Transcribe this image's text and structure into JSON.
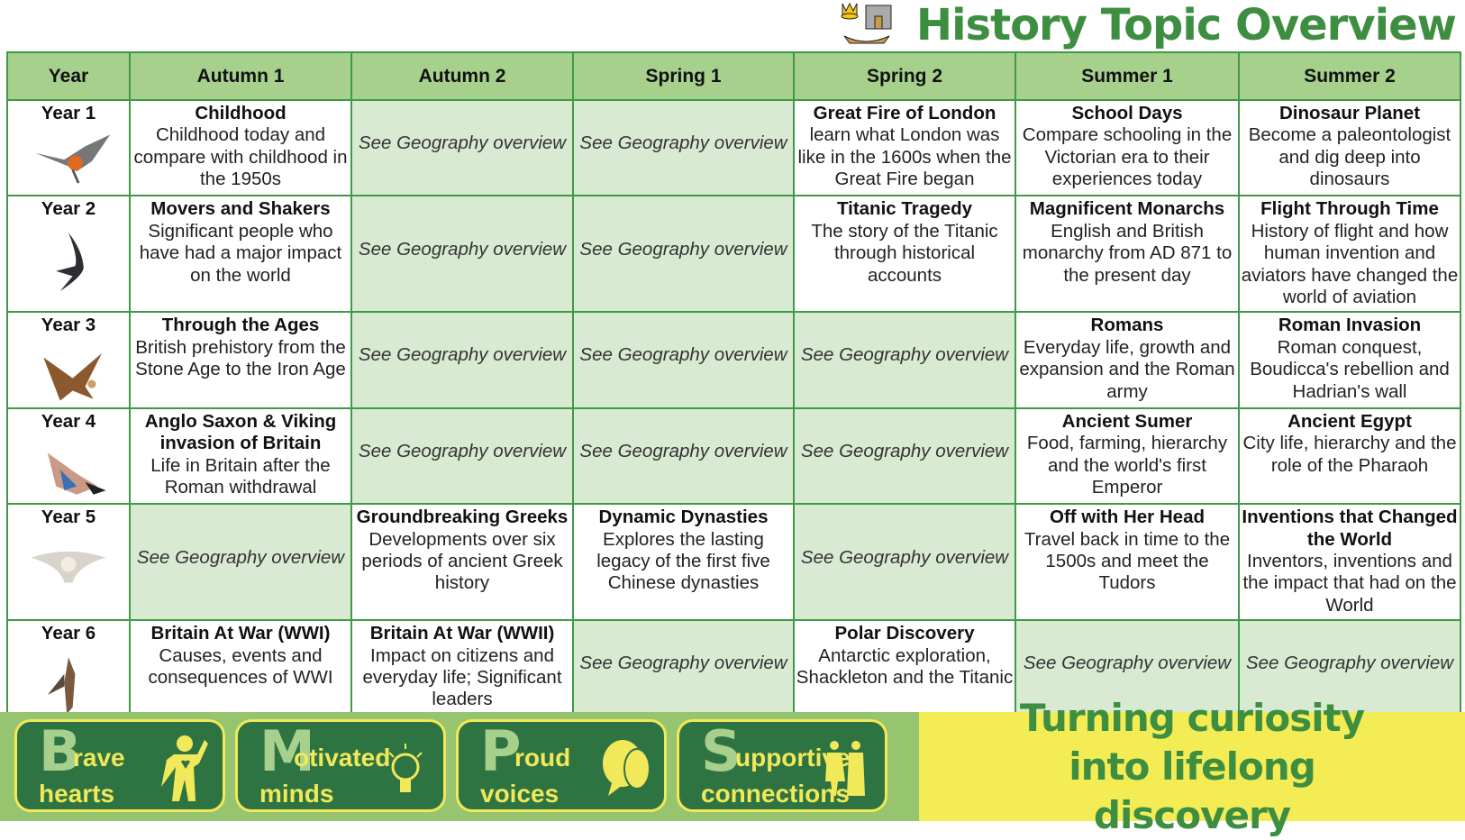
{
  "header": {
    "title": "History Topic Overview",
    "icon": "crown-castle-longship-icon"
  },
  "table": {
    "columns": [
      "Year",
      "Autumn 1",
      "Autumn 2",
      "Spring 1",
      "Spring 2",
      "Summer 1",
      "Summer 2"
    ],
    "geo_text": "See Geography overview",
    "rows": [
      {
        "year": "Year 1",
        "bird": "robin-icon",
        "cells": [
          {
            "title": "Childhood",
            "desc": "Childhood today and compare with childhood in the 1950s"
          },
          {
            "geo": true
          },
          {
            "geo": true
          },
          {
            "title": "Great Fire of London",
            "desc": "learn what London was like in the 1600s when the Great Fire began"
          },
          {
            "title": "School Days",
            "desc": "Compare schooling in the Victorian era to their experiences today"
          },
          {
            "title": "Dinosaur Planet",
            "desc": "Become a paleontologist and dig deep into dinosaurs"
          }
        ]
      },
      {
        "year": "Year 2",
        "bird": "swift-icon",
        "cells": [
          {
            "title": "Movers and Shakers",
            "desc": "Significant people who have had a major impact on the world"
          },
          {
            "geo": true
          },
          {
            "geo": true
          },
          {
            "title": "Titanic Tragedy",
            "desc": "The story of the Titanic through historical accounts"
          },
          {
            "title": "Magnificent Monarchs",
            "desc": "English and British monarchy from AD 871 to the present day"
          },
          {
            "title": "Flight Through Time",
            "desc": "History of flight and how human invention and aviators have changed the world of aviation"
          }
        ]
      },
      {
        "year": "Year 3",
        "bird": "skylark-icon",
        "cells": [
          {
            "title": "Through the Ages",
            "desc": "British prehistory from the Stone Age to the Iron Age"
          },
          {
            "geo": true
          },
          {
            "geo": true
          },
          {
            "geo": true
          },
          {
            "title": "Romans",
            "desc": "Everyday life, growth and expansion and the Roman army"
          },
          {
            "title": "Roman Invasion",
            "desc": "Roman conquest, Boudicca's rebellion and Hadrian's wall"
          }
        ]
      },
      {
        "year": "Year 4",
        "bird": "jay-icon",
        "cells": [
          {
            "title": "Anglo Saxon & Viking invasion of Britain",
            "desc": "Life in Britain after the Roman withdrawal"
          },
          {
            "geo": true
          },
          {
            "geo": true
          },
          {
            "geo": true
          },
          {
            "title": "Ancient Sumer",
            "desc": "Food, farming, hierarchy and the world's first Emperor"
          },
          {
            "title": "Ancient Egypt",
            "desc": "City life, hierarchy and the role of the Pharaoh"
          }
        ]
      },
      {
        "year": "Year 5",
        "bird": "barn-owl-icon",
        "cells": [
          {
            "geo": true
          },
          {
            "title": "Groundbreaking Greeks",
            "desc": "Developments over six periods of ancient Greek history"
          },
          {
            "title": "Dynamic Dynasties",
            "desc": "Explores the lasting legacy of the first five Chinese dynasties"
          },
          {
            "geo": true
          },
          {
            "title": "Off with Her Head",
            "desc": "Travel back in time to the 1500s and meet the Tudors"
          },
          {
            "title": "Inventions that Changed the World",
            "desc": "Inventors, inventions and the impact that had on the World"
          }
        ]
      },
      {
        "year": "Year 6",
        "bird": "kestrel-icon",
        "cells": [
          {
            "title": "Britain At War (WWI)",
            "desc": "Causes, events and consequences of WWI"
          },
          {
            "title": "Britain At War (WWII)",
            "desc": "Impact on citizens and everyday life; Significant leaders"
          },
          {
            "geo": true
          },
          {
            "title": "Polar Discovery",
            "desc": "Antarctic exploration, Shackleton and the Titanic"
          },
          {
            "geo": true
          },
          {
            "geo": true
          }
        ]
      }
    ]
  },
  "footer": {
    "values": [
      {
        "letter": "B",
        "rest": "rave",
        "line2": "hearts",
        "icon": "superhero-heart-icon"
      },
      {
        "letter": "M",
        "rest": "otivated",
        "line2": "minds",
        "icon": "lightbulb-icon"
      },
      {
        "letter": "P",
        "rest": "roud",
        "line2": "voices",
        "icon": "speech-bubbles-icon"
      },
      {
        "letter": "S",
        "rest": "upportive",
        "line2": "connections",
        "icon": "family-icon"
      }
    ],
    "motto": "Turning curiosity into lifelong discovery"
  },
  "colors": {
    "green": "#3e8e41",
    "header_fill": "#a8d08d",
    "geo_fill": "#d9ead3",
    "footer_green": "#97c46e",
    "footer_yellow": "#f4ec55",
    "badge": "#2e7443"
  }
}
